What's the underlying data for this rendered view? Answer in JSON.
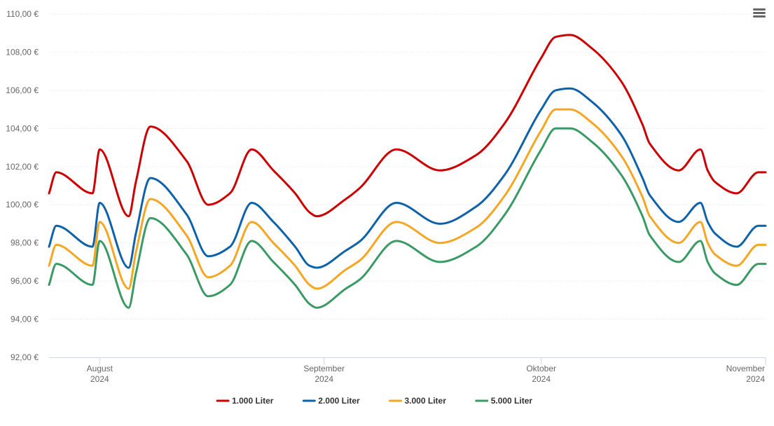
{
  "chart_data": {
    "type": "line",
    "title": "",
    "xlabel": "",
    "ylabel": "",
    "y_unit": "€",
    "ylim": [
      92,
      110
    ],
    "y_ticks": [
      "92,00 €",
      "94,00 €",
      "96,00 €",
      "98,00 €",
      "100,00 €",
      "102,00 €",
      "104,00 €",
      "106,00 €",
      "108,00 €",
      "110,00 €"
    ],
    "y_tick_values": [
      92,
      94,
      96,
      98,
      100,
      102,
      104,
      106,
      108,
      110
    ],
    "x_range": [
      "2024-07-25",
      "2024-11-01"
    ],
    "x_ticks": [
      {
        "date": "2024-08-01",
        "label": "August",
        "year": "2024"
      },
      {
        "date": "2024-09-01",
        "label": "September",
        "year": "2024"
      },
      {
        "date": "2024-10-01",
        "label": "Oktober",
        "year": "2024"
      },
      {
        "date": "2024-11-01",
        "label": "November",
        "year": "2024"
      }
    ],
    "grid": true,
    "legend_position": "bottom-center",
    "x": [
      "2024-07-25",
      "2024-07-26",
      "2024-07-31",
      "2024-08-01",
      "2024-08-05",
      "2024-08-06",
      "2024-08-08",
      "2024-08-13",
      "2024-08-16",
      "2024-08-19",
      "2024-08-22",
      "2024-08-25",
      "2024-08-28",
      "2024-08-30",
      "2024-08-31",
      "2024-09-04",
      "2024-09-06",
      "2024-09-11",
      "2024-09-17",
      "2024-09-22",
      "2024-09-26",
      "2024-10-01",
      "2024-10-03",
      "2024-10-05",
      "2024-10-08",
      "2024-10-12",
      "2024-10-15",
      "2024-10-16",
      "2024-10-20",
      "2024-10-23",
      "2024-10-24",
      "2024-10-25",
      "2024-10-28",
      "2024-10-31",
      "2024-11-01"
    ],
    "series": [
      {
        "name": "1.000 Liter",
        "color": "#cc0000",
        "values": [
          100.6,
          101.7,
          100.6,
          102.9,
          99.4,
          101.2,
          104.1,
          102.3,
          100.0,
          100.6,
          102.9,
          101.8,
          100.6,
          99.6,
          99.4,
          100.3,
          100.9,
          102.9,
          101.8,
          102.6,
          104.3,
          107.7,
          108.8,
          108.9,
          108.2,
          106.5,
          104.2,
          103.2,
          101.8,
          102.9,
          101.8,
          101.2,
          100.6,
          101.7,
          101.7
        ]
      },
      {
        "name": "2.000 Liter",
        "color": "#0d62a9",
        "values": [
          97.8,
          98.9,
          97.8,
          100.1,
          96.7,
          98.5,
          101.4,
          99.5,
          97.3,
          97.8,
          100.1,
          99.1,
          97.8,
          96.8,
          96.7,
          97.6,
          98.1,
          100.1,
          99.0,
          99.9,
          101.6,
          105.0,
          106.0,
          106.1,
          105.4,
          103.7,
          101.4,
          100.5,
          99.1,
          100.1,
          99.1,
          98.5,
          97.8,
          98.9,
          98.9
        ]
      },
      {
        "name": "3.000 Liter",
        "color": "#f5a623",
        "values": [
          96.8,
          97.9,
          96.8,
          99.1,
          95.6,
          97.5,
          100.3,
          98.4,
          96.2,
          96.8,
          99.1,
          98.0,
          96.8,
          95.8,
          95.6,
          96.6,
          97.1,
          99.1,
          98.0,
          98.8,
          100.5,
          103.9,
          105.0,
          105.0,
          104.3,
          102.6,
          100.4,
          99.4,
          98.0,
          99.1,
          98.0,
          97.4,
          96.8,
          97.9,
          97.9
        ]
      },
      {
        "name": "5.000 Liter",
        "color": "#3a9a64",
        "values": [
          95.8,
          96.9,
          95.8,
          98.1,
          94.6,
          96.4,
          99.3,
          97.4,
          95.2,
          95.8,
          98.1,
          97.0,
          95.8,
          94.8,
          94.6,
          95.6,
          96.1,
          98.1,
          97.0,
          97.8,
          99.5,
          102.9,
          104.0,
          104.0,
          103.3,
          101.6,
          99.4,
          98.4,
          97.0,
          98.1,
          97.0,
          96.4,
          95.8,
          96.9,
          96.9
        ]
      }
    ]
  }
}
